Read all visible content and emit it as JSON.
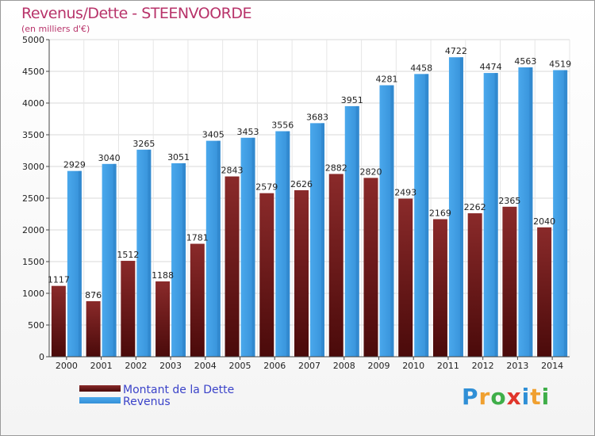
{
  "title": "Revenus/Dette - STEENVOORDE",
  "subtitle": "(en milliers d'€)",
  "logo": [
    "P",
    "r",
    "o",
    "x",
    "i",
    "t",
    "i"
  ],
  "logo_colors": [
    "#2f8fd6",
    "#f0a030",
    "#3fae49",
    "#e0352b",
    "#2f8fd6",
    "#f0a030",
    "#3fae49"
  ],
  "chart_data": {
    "type": "bar",
    "categories": [
      "2000",
      "2001",
      "2002",
      "2003",
      "2004",
      "2005",
      "2006",
      "2007",
      "2008",
      "2009",
      "2010",
      "2011",
      "2012",
      "2013",
      "2014"
    ],
    "series": [
      {
        "name": "Montant de la Dette",
        "color": "#7a1f1f",
        "values": [
          1117,
          876,
          1512,
          1188,
          1781,
          2843,
          2579,
          2626,
          2882,
          2820,
          2493,
          2169,
          2262,
          2365,
          2040
        ],
        "labels": [
          "1117",
          "876",
          "1512",
          "1188",
          "1781",
          "2843",
          "2579",
          "2626",
          "2882",
          "2820",
          "2493",
          "2169",
          "2262",
          "2365",
          "2040"
        ]
      },
      {
        "name": "Revenus",
        "color": "#3d9ee6",
        "values": [
          2929,
          3040,
          3265,
          3051,
          3405,
          3453,
          3556,
          3683,
          3951,
          4281,
          4458,
          4722,
          4474,
          4563,
          4519
        ],
        "labels": [
          "2929",
          "3040",
          "3265",
          "3051",
          "3405",
          "3453",
          "3556",
          "3683",
          "3951",
          "4281",
          "4458",
          "4722",
          "4474",
          "4563",
          "4519"
        ]
      }
    ],
    "ylim": [
      0,
      5000
    ],
    "yticks": [
      0,
      500,
      1000,
      1500,
      2000,
      2500,
      3000,
      3500,
      4000,
      4500,
      5000
    ],
    "grid": true,
    "legend_position": "bottom-left"
  }
}
